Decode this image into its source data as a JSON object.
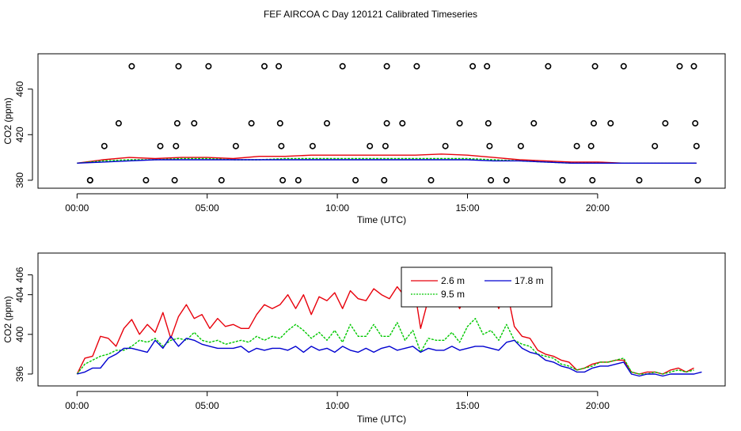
{
  "figure": {
    "title": "FEF AIRCOA C  Day 120121  Calibrated Timeseries"
  },
  "colors": {
    "axis": "#000000",
    "red": "#e8000b",
    "green": "#00c800",
    "blue": "#0000d0"
  },
  "chart_data": [
    {
      "type": "line",
      "title": "",
      "xlabel": "Time (UTC)",
      "ylabel": "CO2 (ppm)",
      "xlim": [
        -1.5,
        24.9
      ],
      "ylim": [
        373,
        491
      ],
      "xticks": [
        0,
        5,
        10,
        15,
        20
      ],
      "xtick_labels": [
        "00:00",
        "05:00",
        "10:00",
        "15:00",
        "20:00"
      ],
      "yticks": [
        380,
        420,
        460
      ],
      "ytick_labels": [
        "380",
        "420",
        "460"
      ],
      "series": [
        {
          "name": "2.6 m",
          "color": "#e8000b",
          "x": [
            0.0,
            1.0,
            2.0,
            3.0,
            4.0,
            5.0,
            6.0,
            7.0,
            8.0,
            9.0,
            10.0,
            11.0,
            12.0,
            13.0,
            14.0,
            15.0,
            16.0,
            17.0,
            18.0,
            19.0,
            20.0,
            21.0,
            22.0,
            23.0,
            23.8
          ],
          "y": [
            395,
            398,
            400,
            399,
            400,
            400,
            399,
            401,
            401,
            402,
            402,
            402,
            402,
            402,
            403,
            402,
            400,
            398,
            397,
            396,
            396,
            395,
            395,
            395,
            395
          ]
        },
        {
          "name": "9.5 m",
          "color": "#00c800",
          "x": [
            0.0,
            1.0,
            2.0,
            3.0,
            4.0,
            5.0,
            6.0,
            7.0,
            8.0,
            9.0,
            10.0,
            11.0,
            12.0,
            13.0,
            14.0,
            15.0,
            16.0,
            17.0,
            18.0,
            19.0,
            20.0,
            21.0,
            22.0,
            23.0,
            23.8
          ],
          "y": [
            395,
            397,
            398,
            398,
            399,
            399,
            398,
            398,
            399,
            399,
            399,
            399,
            399,
            399,
            399,
            399,
            398,
            397,
            396,
            395,
            395,
            395,
            395,
            395,
            395
          ]
        },
        {
          "name": "17.8 m",
          "color": "#0000d0",
          "x": [
            0.0,
            1.0,
            2.0,
            3.0,
            4.0,
            5.0,
            6.0,
            7.0,
            8.0,
            9.0,
            10.0,
            11.0,
            12.0,
            13.0,
            14.0,
            15.0,
            16.0,
            17.0,
            18.0,
            19.0,
            20.0,
            21.0,
            22.0,
            23.0,
            23.8
          ],
          "y": [
            395,
            396,
            397,
            398,
            398,
            398,
            398,
            398,
            398,
            398,
            398,
            398,
            398,
            398,
            398,
            398,
            397,
            397,
            396,
            395,
            395,
            395,
            395,
            395,
            395
          ]
        }
      ],
      "scatter": {
        "name": "calibration points",
        "x": [
          0.5,
          2.1,
          3.9,
          5.05,
          7.2,
          7.75,
          10.2,
          11.9,
          13.05,
          15.2,
          15.75,
          18.1,
          19.9,
          21.0,
          23.15,
          23.7,
          1.6,
          3.85,
          4.5,
          6.7,
          7.8,
          9.6,
          11.9,
          12.5,
          14.7,
          15.8,
          17.55,
          19.85,
          20.5,
          22.6,
          23.75,
          1.05,
          3.2,
          3.8,
          6.1,
          7.85,
          9.05,
          11.25,
          11.85,
          14.15,
          15.85,
          17.05,
          19.2,
          19.75,
          22.2,
          23.8,
          0.5,
          2.65,
          3.75,
          5.55,
          7.9,
          8.5,
          10.7,
          11.8,
          13.6,
          15.9,
          16.5,
          18.65,
          19.8,
          21.6,
          23.85
        ],
        "y": [
          380,
          480,
          480,
          480,
          480,
          480,
          480,
          480,
          480,
          480,
          480,
          480,
          480,
          480,
          480,
          480,
          430,
          430,
          430,
          430,
          430,
          430,
          430,
          430,
          430,
          430,
          430,
          430,
          430,
          430,
          430,
          410,
          410,
          410,
          410,
          410,
          410,
          410,
          410,
          410,
          410,
          410,
          410,
          410,
          410,
          410,
          380,
          380,
          380,
          380,
          380,
          380,
          380,
          380,
          380,
          380,
          380,
          380,
          380,
          380,
          380
        ]
      }
    },
    {
      "type": "line",
      "title": "",
      "xlabel": "Time (UTC)",
      "ylabel": "CO2 (ppm)",
      "xlim": [
        -1.5,
        24.9
      ],
      "ylim": [
        394.8,
        408.2
      ],
      "xticks": [
        0,
        5,
        10,
        15,
        20
      ],
      "xtick_labels": [
        "00:00",
        "05:00",
        "10:00",
        "15:00",
        "20:00"
      ],
      "yticks": [
        396,
        400,
        404,
        406
      ],
      "ytick_labels": [
        "396",
        "400",
        "404",
        "406"
      ],
      "legend": {
        "position": "top-center",
        "entries": [
          "2.6 m",
          "17.8 m",
          "9.5 m"
        ]
      },
      "series": [
        {
          "name": "2.6 m",
          "color": "#e8000b",
          "x": [
            0.0,
            0.3,
            0.6,
            0.9,
            1.2,
            1.5,
            1.8,
            2.1,
            2.4,
            2.7,
            3.0,
            3.3,
            3.6,
            3.9,
            4.2,
            4.5,
            4.8,
            5.1,
            5.4,
            5.7,
            6.0,
            6.3,
            6.6,
            6.9,
            7.2,
            7.5,
            7.8,
            8.1,
            8.4,
            8.7,
            9.0,
            9.3,
            9.6,
            9.9,
            10.2,
            10.5,
            10.8,
            11.1,
            11.4,
            11.7,
            12.0,
            12.3,
            12.6,
            12.9,
            13.2,
            13.5,
            13.8,
            14.1,
            14.4,
            14.7,
            15.0,
            15.3,
            15.6,
            15.9,
            16.2,
            16.5,
            16.8,
            17.1,
            17.4,
            17.7,
            18.0,
            18.3,
            18.6,
            18.9,
            19.2,
            19.5,
            19.8,
            20.1,
            20.4,
            20.7,
            21.0,
            21.3,
            21.6,
            21.9,
            22.2,
            22.5,
            22.8,
            23.1,
            23.4,
            23.7
          ],
          "y": [
            396.0,
            397.6,
            397.8,
            399.8,
            399.6,
            398.8,
            400.6,
            401.5,
            400.0,
            401.0,
            400.2,
            402.2,
            399.6,
            401.8,
            403.0,
            401.6,
            402.0,
            400.6,
            401.6,
            400.8,
            401.0,
            400.6,
            400.6,
            402.0,
            403.0,
            402.6,
            403.0,
            404.0,
            402.6,
            404.0,
            402.0,
            403.8,
            403.4,
            404.2,
            402.6,
            404.4,
            403.6,
            403.4,
            404.6,
            404.0,
            403.6,
            404.8,
            403.8,
            405.6,
            400.6,
            403.6,
            404.6,
            403.0,
            404.2,
            402.6,
            404.2,
            405.4,
            404.0,
            404.6,
            402.6,
            404.6,
            400.8,
            399.8,
            399.6,
            398.4,
            398.0,
            397.8,
            397.4,
            397.2,
            396.4,
            396.6,
            397.0,
            397.2,
            397.2,
            397.4,
            397.4,
            396.2,
            396.0,
            396.2,
            396.2,
            396.0,
            396.4,
            396.6,
            396.2,
            396.6
          ]
        },
        {
          "name": "9.5 m",
          "color": "#00c800",
          "x": [
            0.0,
            0.3,
            0.6,
            0.9,
            1.2,
            1.5,
            1.8,
            2.1,
            2.4,
            2.7,
            3.0,
            3.3,
            3.6,
            3.9,
            4.2,
            4.5,
            4.8,
            5.1,
            5.4,
            5.7,
            6.0,
            6.3,
            6.6,
            6.9,
            7.2,
            7.5,
            7.8,
            8.1,
            8.4,
            8.7,
            9.0,
            9.3,
            9.6,
            9.9,
            10.2,
            10.5,
            10.8,
            11.1,
            11.4,
            11.7,
            12.0,
            12.3,
            12.6,
            12.9,
            13.2,
            13.5,
            13.8,
            14.1,
            14.4,
            14.7,
            15.0,
            15.3,
            15.6,
            15.9,
            16.2,
            16.5,
            16.8,
            17.1,
            17.4,
            17.7,
            18.0,
            18.3,
            18.6,
            18.9,
            19.2,
            19.5,
            19.8,
            20.1,
            20.4,
            20.7,
            21.0,
            21.3,
            21.6,
            21.9,
            22.2,
            22.5,
            22.8,
            23.1,
            23.4,
            23.7
          ],
          "y": [
            396.0,
            397.0,
            397.4,
            397.8,
            398.0,
            398.4,
            398.4,
            398.8,
            399.4,
            399.2,
            399.6,
            398.8,
            399.4,
            399.6,
            399.4,
            400.2,
            399.4,
            399.2,
            399.4,
            399.0,
            399.2,
            399.4,
            399.2,
            399.8,
            399.4,
            399.8,
            399.6,
            400.4,
            401.0,
            400.4,
            399.6,
            400.2,
            399.4,
            400.4,
            399.2,
            401.0,
            399.8,
            399.8,
            401.0,
            399.8,
            399.8,
            401.2,
            399.4,
            400.4,
            398.2,
            399.6,
            399.4,
            399.4,
            400.2,
            399.2,
            400.8,
            401.6,
            400.0,
            400.4,
            399.4,
            401.0,
            399.4,
            399.0,
            398.8,
            398.0,
            397.8,
            397.6,
            397.0,
            396.8,
            396.4,
            396.6,
            396.8,
            397.2,
            397.2,
            397.4,
            397.6,
            396.2,
            396.0,
            396.0,
            396.2,
            396.0,
            396.2,
            396.4,
            396.2,
            396.4
          ]
        },
        {
          "name": "17.8 m",
          "color": "#0000d0",
          "x": [
            0.0,
            0.3,
            0.6,
            0.9,
            1.2,
            1.5,
            1.8,
            2.1,
            2.4,
            2.7,
            3.0,
            3.3,
            3.6,
            3.9,
            4.2,
            4.5,
            4.8,
            5.1,
            5.4,
            5.7,
            6.0,
            6.3,
            6.6,
            6.9,
            7.2,
            7.5,
            7.8,
            8.1,
            8.4,
            8.7,
            9.0,
            9.3,
            9.6,
            9.9,
            10.2,
            10.5,
            10.8,
            11.1,
            11.4,
            11.7,
            12.0,
            12.3,
            12.6,
            12.9,
            13.2,
            13.5,
            13.8,
            14.1,
            14.4,
            14.7,
            15.0,
            15.3,
            15.6,
            15.9,
            16.2,
            16.5,
            16.8,
            17.1,
            17.4,
            17.7,
            18.0,
            18.3,
            18.6,
            18.9,
            19.2,
            19.5,
            19.8,
            20.1,
            20.4,
            20.7,
            21.0,
            21.3,
            21.6,
            21.9,
            22.2,
            22.5,
            22.8,
            23.1,
            23.4,
            23.7,
            24.0
          ],
          "y": [
            396.0,
            396.2,
            396.6,
            396.6,
            397.6,
            398.0,
            398.6,
            398.6,
            398.4,
            398.2,
            399.4,
            398.6,
            399.8,
            398.8,
            399.6,
            399.4,
            399.0,
            398.8,
            398.6,
            398.6,
            398.6,
            398.8,
            398.2,
            398.6,
            398.4,
            398.6,
            398.6,
            398.4,
            398.8,
            398.2,
            398.8,
            398.4,
            398.6,
            398.2,
            398.8,
            398.4,
            398.2,
            398.6,
            398.2,
            398.6,
            398.8,
            398.4,
            398.6,
            398.8,
            398.2,
            398.6,
            398.4,
            398.4,
            398.8,
            398.4,
            398.6,
            398.8,
            398.8,
            398.6,
            398.4,
            399.2,
            399.4,
            398.6,
            398.2,
            398.0,
            397.4,
            397.2,
            396.8,
            396.6,
            396.2,
            396.2,
            396.6,
            396.8,
            396.8,
            397.0,
            397.2,
            396.0,
            395.8,
            396.0,
            396.0,
            395.8,
            396.0,
            396.0,
            396.0,
            396.0,
            396.2
          ]
        }
      ]
    }
  ]
}
